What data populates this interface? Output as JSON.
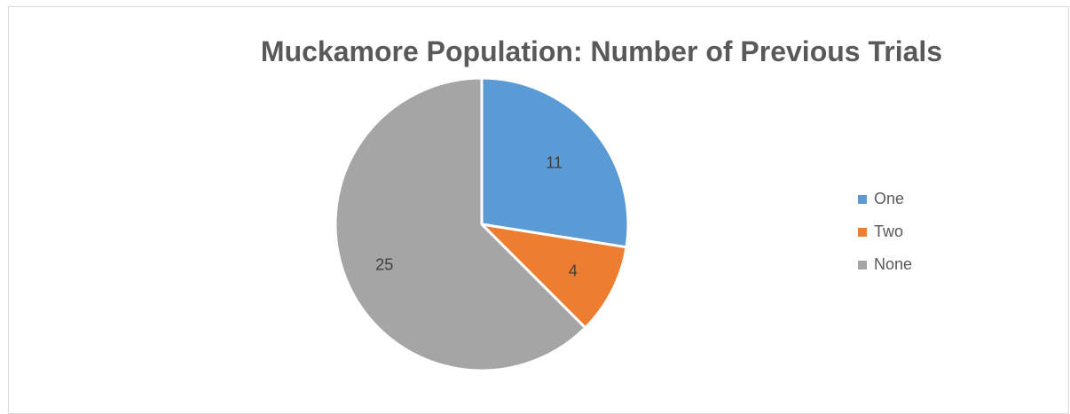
{
  "chart_data": {
    "type": "pie",
    "title": "Muckamore Population:  Number of Previous Trials",
    "categories": [
      "One",
      "Two",
      "None"
    ],
    "values": [
      11,
      4,
      25
    ],
    "colors": [
      "#5b9bd5",
      "#ed7d31",
      "#a5a5a5"
    ],
    "legend_position": "right"
  }
}
